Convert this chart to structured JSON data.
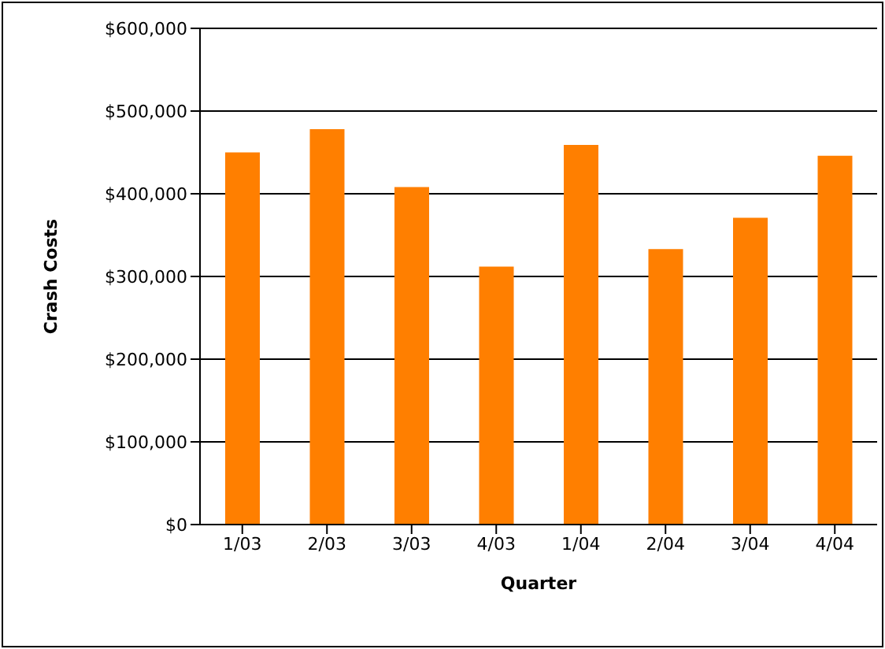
{
  "chart_data": {
    "type": "bar",
    "xlabel": "Quarter",
    "ylabel": "Crash Costs",
    "categories": [
      "1/03",
      "2/03",
      "3/03",
      "4/03",
      "1/04",
      "2/04",
      "3/04",
      "4/04"
    ],
    "values": [
      450000,
      478000,
      408000,
      312000,
      459000,
      333000,
      371000,
      446000
    ],
    "color": "#ff7f00",
    "ylim": [
      0,
      600000
    ],
    "yticks": [
      {
        "value": 0,
        "label": "$0"
      },
      {
        "value": 100000,
        "label": "$100,000"
      },
      {
        "value": 200000,
        "label": "$200,000"
      },
      {
        "value": 300000,
        "label": "$300,000"
      },
      {
        "value": 400000,
        "label": "$400,000"
      },
      {
        "value": 500000,
        "label": "$500,000"
      },
      {
        "value": 600000,
        "label": "$600,000"
      }
    ],
    "grid": "y",
    "legend": false
  }
}
